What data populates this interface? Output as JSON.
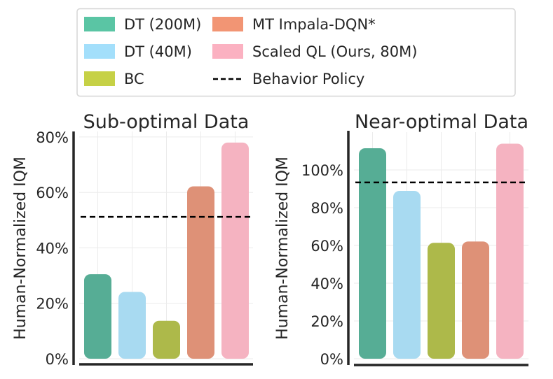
{
  "legend": {
    "location": "top-center",
    "columns": 2,
    "entries": [
      {
        "label": "DT (200M)",
        "kind": "patch",
        "color": "#5ac5a4"
      },
      {
        "label": "DT (40M)",
        "kind": "patch",
        "color": "#a3dffb"
      },
      {
        "label": "BC",
        "kind": "patch",
        "color": "#c6d146"
      },
      {
        "label": "MT Impala-DQN*",
        "kind": "patch",
        "color": "#f29574"
      },
      {
        "label": "Scaled QL (Ours, 80M)",
        "kind": "patch",
        "color": "#fbb1c1"
      },
      {
        "label": "Behavior Policy",
        "kind": "dashed-line",
        "color": "#000000"
      }
    ]
  },
  "chart_data": [
    {
      "type": "bar",
      "title": "Sub-optimal Data",
      "xlabel": "",
      "ylabel": "Human-Normalized IQM",
      "ylim": [
        0,
        82
      ],
      "yticks": [
        0,
        20,
        40,
        60,
        80
      ],
      "ytick_labels": [
        "0%",
        "20%",
        "40%",
        "60%",
        "80%"
      ],
      "grid": true,
      "categories": [
        "DT (200M)",
        "DT (40M)",
        "BC",
        "MT Impala-DQN*",
        "Scaled QL (Ours, 80M)"
      ],
      "values": [
        30.5,
        24.1,
        13.7,
        62.2,
        78.0
      ],
      "colors": [
        "#56ad95",
        "#a8daf1",
        "#adb94a",
        "#de9177",
        "#f5b3c1"
      ],
      "reference_line": {
        "label": "Behavior Policy",
        "value": 51.2,
        "style": "dashed",
        "color": "#000000"
      }
    },
    {
      "type": "bar",
      "title": "Near-optimal Data",
      "xlabel": "",
      "ylabel": "Human-Normalized IQM",
      "ylim": [
        0,
        120
      ],
      "yticks": [
        0,
        20,
        40,
        60,
        80,
        100
      ],
      "ytick_labels": [
        "0%",
        "20%",
        "40%",
        "60%",
        "80%",
        "100%"
      ],
      "grid": true,
      "categories": [
        "DT (200M)",
        "DT (40M)",
        "BC",
        "MT Impala-DQN*",
        "Scaled QL (Ours, 80M)"
      ],
      "values": [
        111.5,
        88.9,
        61.4,
        62.1,
        113.9
      ],
      "colors": [
        "#56ad95",
        "#a8daf1",
        "#adb94a",
        "#de9177",
        "#f5b3c1"
      ],
      "reference_line": {
        "label": "Behavior Policy",
        "value": 93.4,
        "style": "dashed",
        "color": "#000000"
      }
    }
  ]
}
